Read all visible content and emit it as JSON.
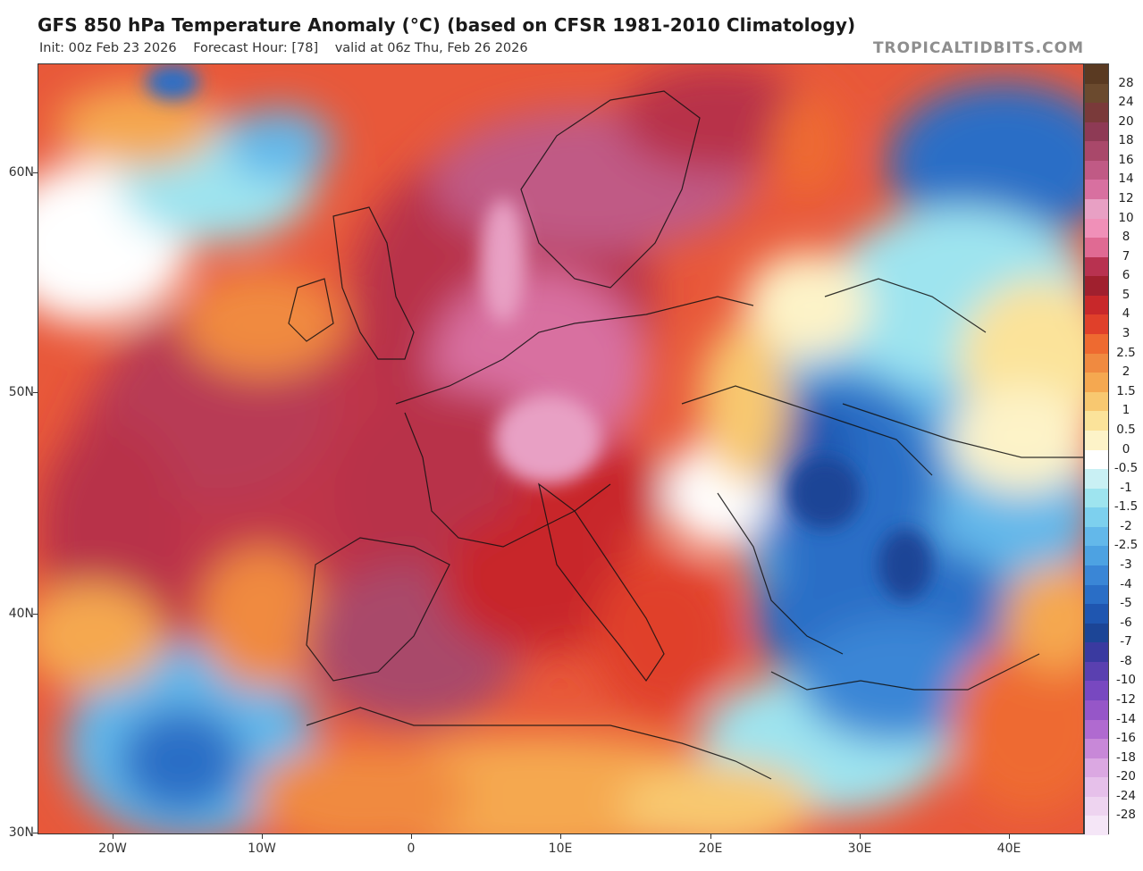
{
  "header": {
    "title": "GFS 850 hPa Temperature Anomaly (°C) (based on CFSR 1981-2010 Climatology)",
    "init": "Init: 00z Feb 23 2026",
    "forecast_hour": "Forecast Hour: [78]",
    "valid": "valid at 06z Thu, Feb 26 2026",
    "brand": "TROPICALTIDBITS.COM"
  },
  "axes": {
    "lat_labels": [
      "60N",
      "50N",
      "40N",
      "30N"
    ],
    "lon_labels": [
      "20W",
      "10W",
      "0",
      "10E",
      "20E",
      "30E",
      "40E"
    ]
  },
  "legend": {
    "labels": [
      "28",
      "24",
      "20",
      "18",
      "16",
      "14",
      "12",
      "10",
      "8",
      "7",
      "6",
      "5",
      "4",
      "3",
      "2.5",
      "2",
      "1.5",
      "1",
      "0.5",
      "0",
      "-0.5",
      "-1",
      "-1.5",
      "-2",
      "-2.5",
      "-3",
      "-4",
      "-5",
      "-6",
      "-7",
      "-8",
      "-10",
      "-12",
      "-14",
      "-16",
      "-18",
      "-20",
      "-24",
      "-28"
    ],
    "colors": [
      "#6b4a2e",
      "#7a3a3a",
      "#8e3a55",
      "#a9486a",
      "#c05a85",
      "#d870a0",
      "#e8a0c4",
      "#f090b8",
      "#e06a93",
      "#b83250",
      "#a0202e",
      "#c8282a",
      "#e0402a",
      "#ee6a30",
      "#f08a40",
      "#f5a850",
      "#f8c870",
      "#fbe39a",
      "#fdf3c8",
      "#ffffff",
      "#c9f0f4",
      "#9ee4ef",
      "#7dd0ee",
      "#63b8ea",
      "#4da2e2",
      "#3a86d6",
      "#2a6ec6",
      "#1f56b0",
      "#1c4596",
      "#3a3aa0",
      "#5a40b0",
      "#7848c0",
      "#9656c8",
      "#b06ad0",
      "#c888d8",
      "#dba8e2",
      "#e6c0ea",
      "#eed4f0",
      "#f5e6f7"
    ]
  }
}
